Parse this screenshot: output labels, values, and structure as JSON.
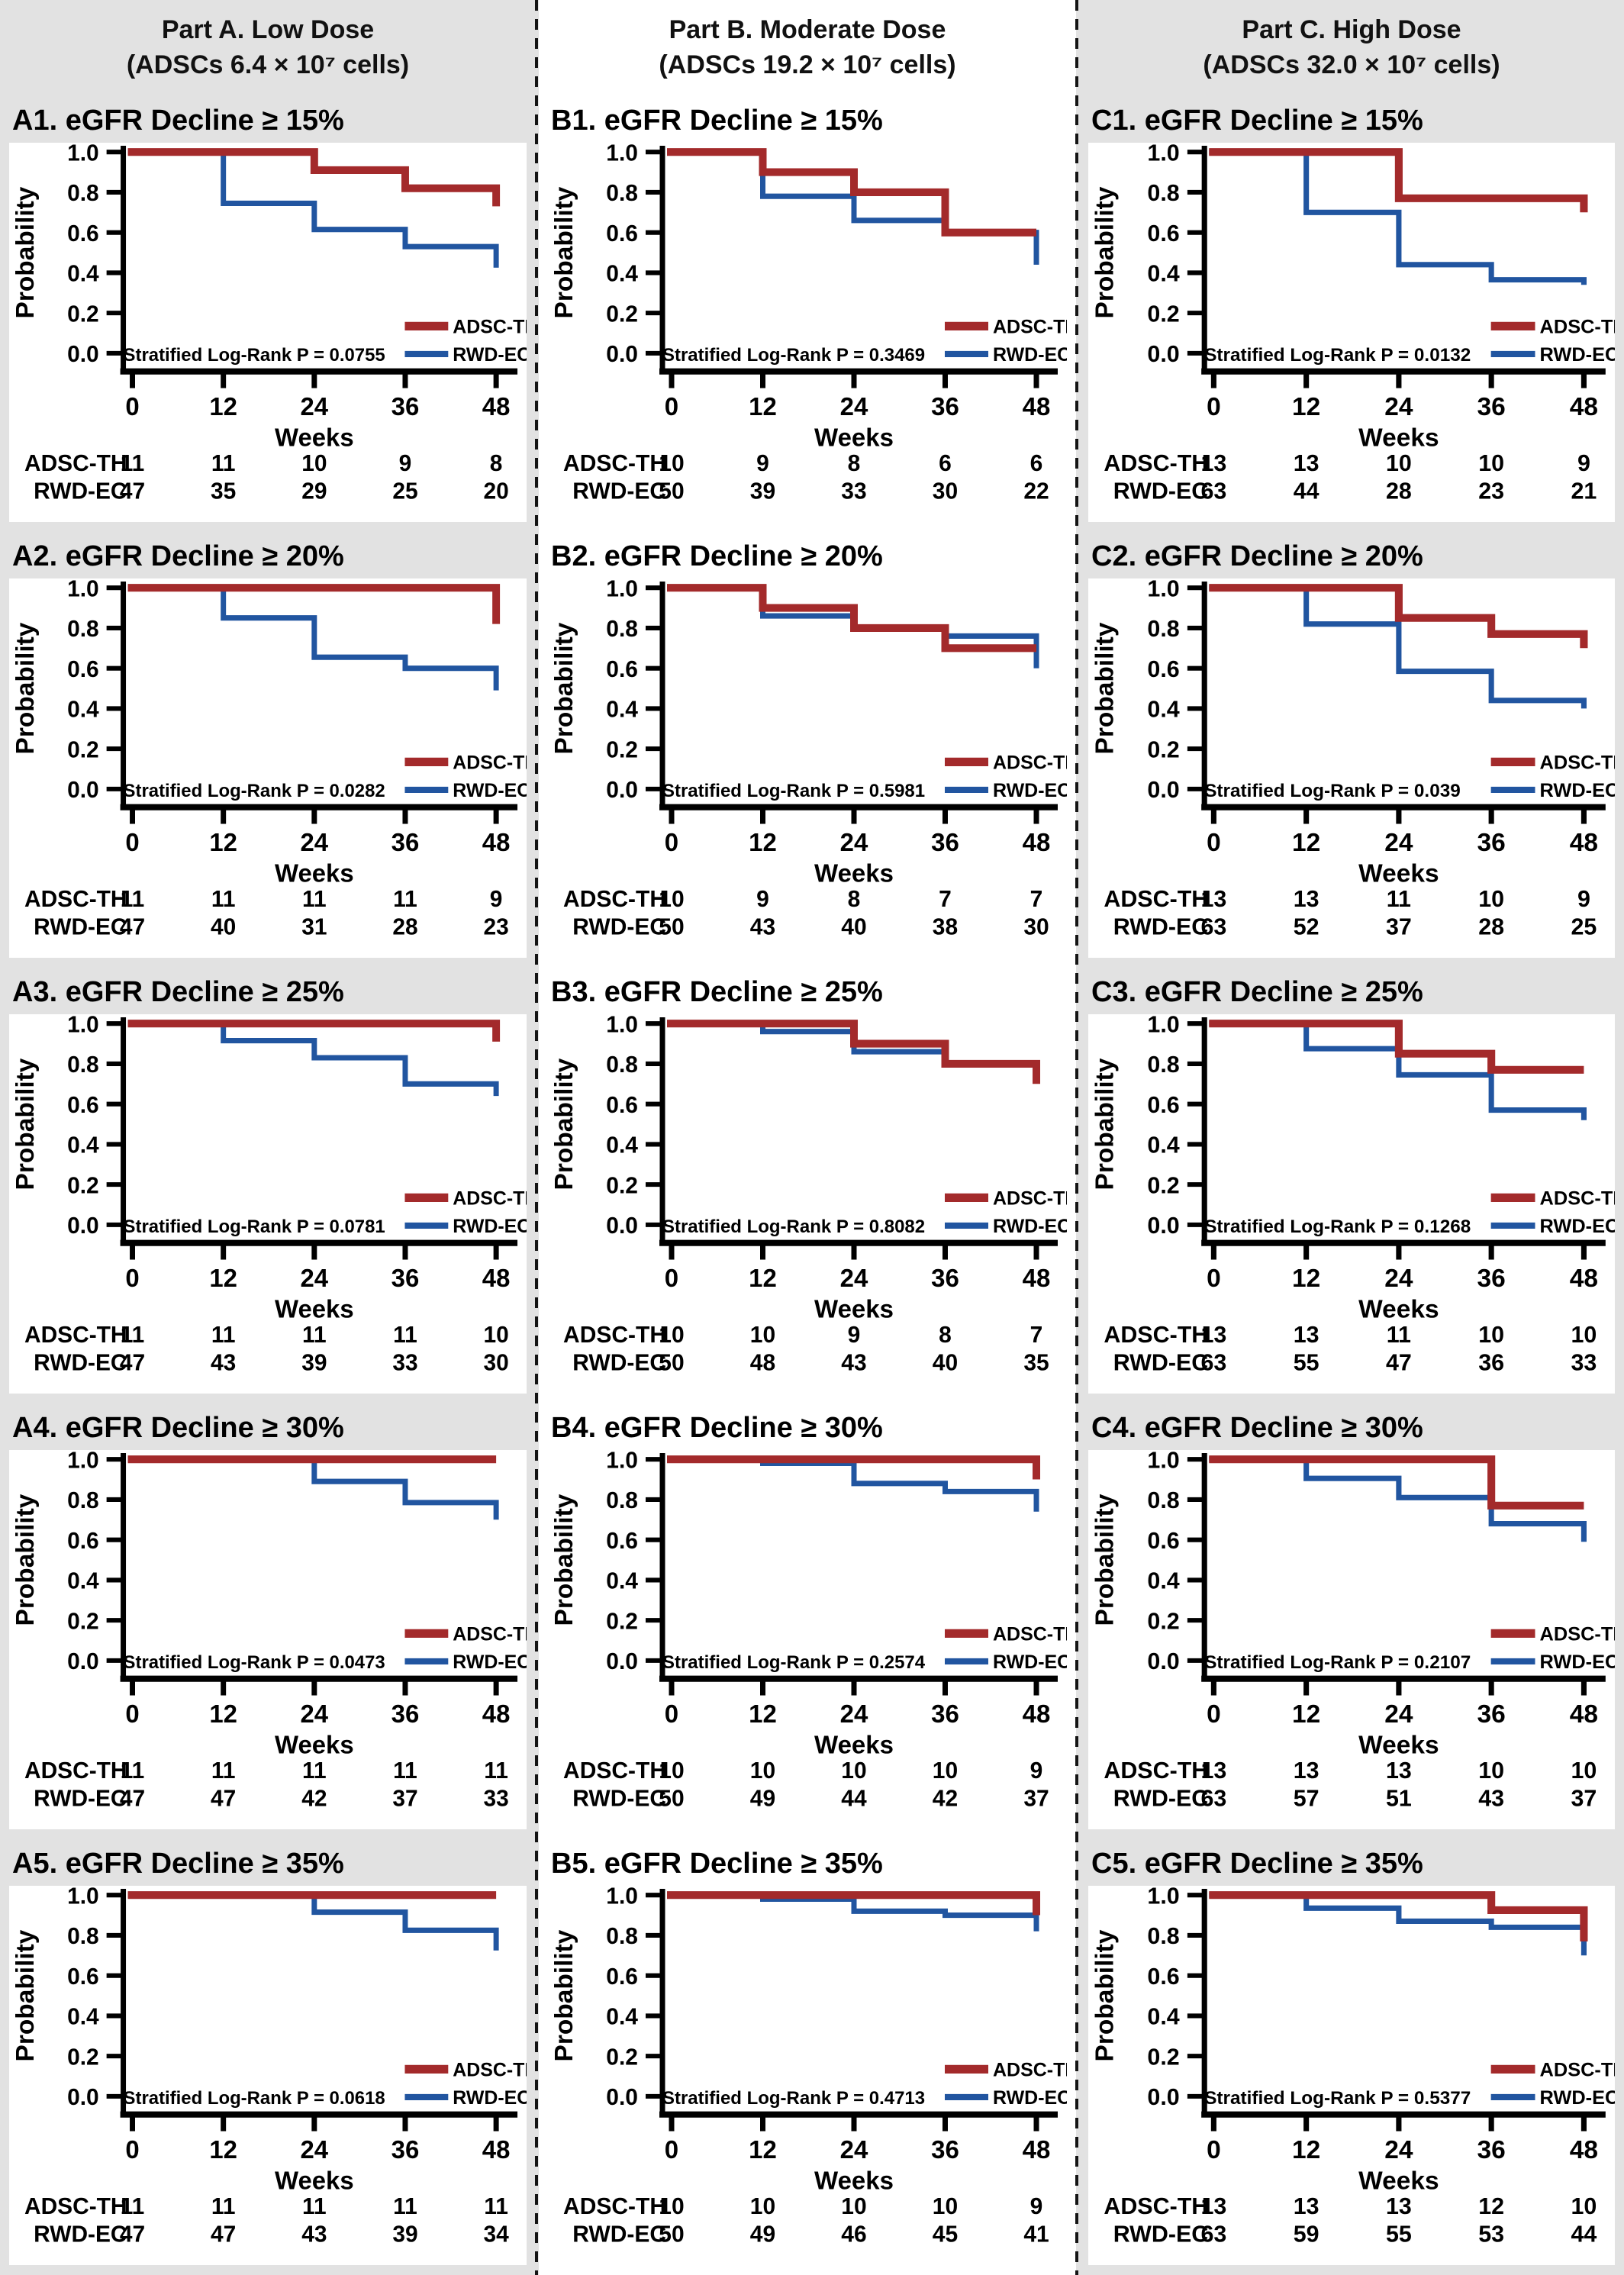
{
  "page": {
    "background": "#e2e2e2",
    "card_background": "#ffffff",
    "axis_color": "#000000",
    "separator_color": "#141414"
  },
  "colors": {
    "ADSC-TH": "#a32a2b",
    "RWD-EC": "#2155a0"
  },
  "legend": {
    "entries": [
      "ADSC-TH",
      "RWD-EC"
    ]
  },
  "axis": {
    "ylabel": "Probability",
    "xlabel": "Weeks",
    "yticks": [
      "1.0",
      "0.8",
      "0.6",
      "0.4",
      "0.2",
      "0.0"
    ],
    "xticks": [
      0,
      12,
      24,
      36,
      48
    ],
    "ylim": [
      0,
      1
    ],
    "xlim": [
      0,
      48
    ]
  },
  "columns": [
    {
      "id": "A",
      "header_line1": "Part A. Low Dose",
      "header_line2": "(ADSCs 6.4 × 10⁷ cells)"
    },
    {
      "id": "B",
      "header_line1": "Part B. Moderate Dose",
      "header_line2": "(ADSCs 19.2 × 10⁷ cells)"
    },
    {
      "id": "C",
      "header_line1": "Part C. High Dose",
      "header_line2": "(ADSCs 32.0 × 10⁷ cells)"
    }
  ],
  "risk_table_labels": [
    "ADSC-TH",
    "RWD-EC"
  ],
  "chart_data": [
    {
      "id": "A1",
      "type": "line",
      "title": "A1. eGFR Decline ≥ 15%",
      "p_label": "Stratified Log-Rank P = 0.0755",
      "series": [
        {
          "name": "ADSC-TH",
          "points": [
            [
              0,
              1.0
            ],
            [
              24,
              0.91
            ],
            [
              36,
              0.82
            ],
            [
              48,
              0.73
            ]
          ]
        },
        {
          "name": "RWD-EC",
          "points": [
            [
              0,
              1.0
            ],
            [
              12,
              0.745
            ],
            [
              24,
              0.615
            ],
            [
              36,
              0.53
            ],
            [
              48,
              0.425
            ]
          ]
        }
      ],
      "at_risk": [
        {
          "name": "ADSC-TH",
          "counts": [
            11,
            11,
            10,
            9,
            8
          ]
        },
        {
          "name": "RWD-EC",
          "counts": [
            47,
            35,
            29,
            25,
            20
          ]
        }
      ]
    },
    {
      "id": "A2",
      "type": "line",
      "title": "A2. eGFR Decline ≥ 20%",
      "p_label": "Stratified Log-Rank P = 0.0282",
      "series": [
        {
          "name": "ADSC-TH",
          "points": [
            [
              0,
              1.0
            ],
            [
              48,
              0.82
            ]
          ]
        },
        {
          "name": "RWD-EC",
          "points": [
            [
              0,
              1.0
            ],
            [
              12,
              0.85
            ],
            [
              24,
              0.655
            ],
            [
              36,
              0.6
            ],
            [
              48,
              0.49
            ]
          ]
        }
      ],
      "at_risk": [
        {
          "name": "ADSC-TH",
          "counts": [
            11,
            11,
            11,
            11,
            9
          ]
        },
        {
          "name": "RWD-EC",
          "counts": [
            47,
            40,
            31,
            28,
            23
          ]
        }
      ]
    },
    {
      "id": "A3",
      "type": "line",
      "title": "A3. eGFR Decline ≥ 25%",
      "p_label": "Stratified Log-Rank P = 0.0781",
      "series": [
        {
          "name": "ADSC-TH",
          "points": [
            [
              0,
              1.0
            ],
            [
              48,
              0.91
            ]
          ]
        },
        {
          "name": "RWD-EC",
          "points": [
            [
              0,
              1.0
            ],
            [
              12,
              0.915
            ],
            [
              24,
              0.83
            ],
            [
              36,
              0.7
            ],
            [
              48,
              0.64
            ]
          ]
        }
      ],
      "at_risk": [
        {
          "name": "ADSC-TH",
          "counts": [
            11,
            11,
            11,
            11,
            10
          ]
        },
        {
          "name": "RWD-EC",
          "counts": [
            47,
            43,
            39,
            33,
            30
          ]
        }
      ]
    },
    {
      "id": "A4",
      "type": "line",
      "title": "A4. eGFR Decline ≥ 30%",
      "p_label": "Stratified Log-Rank P = 0.0473",
      "series": [
        {
          "name": "ADSC-TH",
          "points": [
            [
              0,
              1.0
            ],
            [
              48,
              1.0
            ]
          ]
        },
        {
          "name": "RWD-EC",
          "points": [
            [
              0,
              1.0
            ],
            [
              24,
              0.89
            ],
            [
              36,
              0.785
            ],
            [
              48,
              0.7
            ]
          ]
        }
      ],
      "at_risk": [
        {
          "name": "ADSC-TH",
          "counts": [
            11,
            11,
            11,
            11,
            11
          ]
        },
        {
          "name": "RWD-EC",
          "counts": [
            47,
            47,
            42,
            37,
            33
          ]
        }
      ]
    },
    {
      "id": "A5",
      "type": "line",
      "title": "A5. eGFR Decline ≥ 35%",
      "p_label": "Stratified Log-Rank P = 0.0618",
      "series": [
        {
          "name": "ADSC-TH",
          "points": [
            [
              0,
              1.0
            ],
            [
              48,
              1.0
            ]
          ]
        },
        {
          "name": "RWD-EC",
          "points": [
            [
              0,
              1.0
            ],
            [
              24,
              0.915
            ],
            [
              36,
              0.825
            ],
            [
              48,
              0.725
            ]
          ]
        }
      ],
      "at_risk": [
        {
          "name": "ADSC-TH",
          "counts": [
            11,
            11,
            11,
            11,
            11
          ]
        },
        {
          "name": "RWD-EC",
          "counts": [
            47,
            47,
            43,
            39,
            34
          ]
        }
      ]
    },
    {
      "id": "B1",
      "type": "line",
      "title": "B1. eGFR Decline ≥ 15%",
      "p_label": "Stratified Log-Rank P = 0.3469",
      "series": [
        {
          "name": "ADSC-TH",
          "points": [
            [
              0,
              1.0
            ],
            [
              12,
              0.9
            ],
            [
              24,
              0.8
            ],
            [
              36,
              0.6
            ],
            [
              48,
              0.6
            ]
          ]
        },
        {
          "name": "RWD-EC",
          "points": [
            [
              0,
              1.0
            ],
            [
              12,
              0.78
            ],
            [
              24,
              0.66
            ],
            [
              36,
              0.6
            ],
            [
              48,
              0.44
            ]
          ]
        }
      ],
      "at_risk": [
        {
          "name": "ADSC-TH",
          "counts": [
            10,
            9,
            8,
            6,
            6
          ]
        },
        {
          "name": "RWD-EC",
          "counts": [
            50,
            39,
            33,
            30,
            22
          ]
        }
      ]
    },
    {
      "id": "B2",
      "type": "line",
      "title": "B2. eGFR Decline ≥ 20%",
      "p_label": "Stratified Log-Rank P = 0.5981",
      "series": [
        {
          "name": "ADSC-TH",
          "points": [
            [
              0,
              1.0
            ],
            [
              12,
              0.9
            ],
            [
              24,
              0.8
            ],
            [
              36,
              0.7
            ],
            [
              48,
              0.7
            ]
          ]
        },
        {
          "name": "RWD-EC",
          "points": [
            [
              0,
              1.0
            ],
            [
              12,
              0.86
            ],
            [
              24,
              0.8
            ],
            [
              36,
              0.76
            ],
            [
              48,
              0.6
            ]
          ]
        }
      ],
      "at_risk": [
        {
          "name": "ADSC-TH",
          "counts": [
            10,
            9,
            8,
            7,
            7
          ]
        },
        {
          "name": "RWD-EC",
          "counts": [
            50,
            43,
            40,
            38,
            30
          ]
        }
      ]
    },
    {
      "id": "B3",
      "type": "line",
      "title": "B3. eGFR Decline ≥ 25%",
      "p_label": "Stratified Log-Rank P = 0.8082",
      "series": [
        {
          "name": "ADSC-TH",
          "points": [
            [
              0,
              1.0
            ],
            [
              24,
              0.9
            ],
            [
              36,
              0.8
            ],
            [
              48,
              0.7
            ]
          ]
        },
        {
          "name": "RWD-EC",
          "points": [
            [
              0,
              1.0
            ],
            [
              12,
              0.96
            ],
            [
              24,
              0.86
            ],
            [
              36,
              0.8
            ],
            [
              48,
              0.71
            ]
          ]
        }
      ],
      "at_risk": [
        {
          "name": "ADSC-TH",
          "counts": [
            10,
            10,
            9,
            8,
            7
          ]
        },
        {
          "name": "RWD-EC",
          "counts": [
            50,
            48,
            43,
            40,
            35
          ]
        }
      ]
    },
    {
      "id": "B4",
      "type": "line",
      "title": "B4. eGFR Decline ≥ 30%",
      "p_label": "Stratified Log-Rank P = 0.2574",
      "series": [
        {
          "name": "ADSC-TH",
          "points": [
            [
              0,
              1.0
            ],
            [
              48,
              0.9
            ]
          ]
        },
        {
          "name": "RWD-EC",
          "points": [
            [
              0,
              1.0
            ],
            [
              12,
              0.98
            ],
            [
              24,
              0.88
            ],
            [
              36,
              0.84
            ],
            [
              48,
              0.74
            ]
          ]
        }
      ],
      "at_risk": [
        {
          "name": "ADSC-TH",
          "counts": [
            10,
            10,
            10,
            10,
            9
          ]
        },
        {
          "name": "RWD-EC",
          "counts": [
            50,
            49,
            44,
            42,
            37
          ]
        }
      ]
    },
    {
      "id": "B5",
      "type": "line",
      "title": "B5. eGFR Decline ≥ 35%",
      "p_label": "Stratified Log-Rank P = 0.4713",
      "series": [
        {
          "name": "ADSC-TH",
          "points": [
            [
              0,
              1.0
            ],
            [
              48,
              0.9
            ]
          ]
        },
        {
          "name": "RWD-EC",
          "points": [
            [
              0,
              1.0
            ],
            [
              12,
              0.98
            ],
            [
              24,
              0.92
            ],
            [
              36,
              0.9
            ],
            [
              48,
              0.82
            ]
          ]
        }
      ],
      "at_risk": [
        {
          "name": "ADSC-TH",
          "counts": [
            10,
            10,
            10,
            10,
            9
          ]
        },
        {
          "name": "RWD-EC",
          "counts": [
            50,
            49,
            46,
            45,
            41
          ]
        }
      ]
    },
    {
      "id": "C1",
      "type": "line",
      "title": "C1. eGFR Decline ≥ 15%",
      "p_label": "Stratified Log-Rank P = 0.0132",
      "series": [
        {
          "name": "ADSC-TH",
          "points": [
            [
              0,
              1.0
            ],
            [
              24,
              0.77
            ],
            [
              48,
              0.7
            ]
          ]
        },
        {
          "name": "RWD-EC",
          "points": [
            [
              0,
              1.0
            ],
            [
              12,
              0.7
            ],
            [
              24,
              0.44
            ],
            [
              36,
              0.365
            ],
            [
              48,
              0.34
            ]
          ]
        }
      ],
      "at_risk": [
        {
          "name": "ADSC-TH",
          "counts": [
            13,
            13,
            10,
            10,
            9
          ]
        },
        {
          "name": "RWD-EC",
          "counts": [
            63,
            44,
            28,
            23,
            21
          ]
        }
      ]
    },
    {
      "id": "C2",
      "type": "line",
      "title": "C2. eGFR Decline ≥ 20%",
      "p_label": "Stratified Log-Rank P = 0.039",
      "series": [
        {
          "name": "ADSC-TH",
          "points": [
            [
              0,
              1.0
            ],
            [
              24,
              0.85
            ],
            [
              36,
              0.77
            ],
            [
              48,
              0.7
            ]
          ]
        },
        {
          "name": "RWD-EC",
          "points": [
            [
              0,
              1.0
            ],
            [
              12,
              0.82
            ],
            [
              24,
              0.585
            ],
            [
              36,
              0.44
            ],
            [
              48,
              0.4
            ]
          ]
        }
      ],
      "at_risk": [
        {
          "name": "ADSC-TH",
          "counts": [
            13,
            13,
            11,
            10,
            9
          ]
        },
        {
          "name": "RWD-EC",
          "counts": [
            63,
            52,
            37,
            28,
            25
          ]
        }
      ]
    },
    {
      "id": "C3",
      "type": "line",
      "title": "C3. eGFR Decline ≥ 25%",
      "p_label": "Stratified Log-Rank P = 0.1268",
      "series": [
        {
          "name": "ADSC-TH",
          "points": [
            [
              0,
              1.0
            ],
            [
              24,
              0.85
            ],
            [
              36,
              0.77
            ],
            [
              48,
              0.77
            ]
          ]
        },
        {
          "name": "RWD-EC",
          "points": [
            [
              0,
              1.0
            ],
            [
              12,
              0.875
            ],
            [
              24,
              0.745
            ],
            [
              36,
              0.57
            ],
            [
              48,
              0.52
            ]
          ]
        }
      ],
      "at_risk": [
        {
          "name": "ADSC-TH",
          "counts": [
            13,
            13,
            11,
            10,
            10
          ]
        },
        {
          "name": "RWD-EC",
          "counts": [
            63,
            55,
            47,
            36,
            33
          ]
        }
      ]
    },
    {
      "id": "C4",
      "type": "line",
      "title": "C4. eGFR Decline ≥ 30%",
      "p_label": "Stratified Log-Rank P = 0.2107",
      "series": [
        {
          "name": "ADSC-TH",
          "points": [
            [
              0,
              1.0
            ],
            [
              36,
              0.77
            ],
            [
              48,
              0.77
            ]
          ]
        },
        {
          "name": "RWD-EC",
          "points": [
            [
              0,
              1.0
            ],
            [
              12,
              0.905
            ],
            [
              24,
              0.81
            ],
            [
              36,
              0.68
            ],
            [
              48,
              0.59
            ]
          ]
        }
      ],
      "at_risk": [
        {
          "name": "ADSC-TH",
          "counts": [
            13,
            13,
            13,
            10,
            10
          ]
        },
        {
          "name": "RWD-EC",
          "counts": [
            63,
            57,
            51,
            43,
            37
          ]
        }
      ]
    },
    {
      "id": "C5",
      "type": "line",
      "title": "C5. eGFR Decline ≥ 35%",
      "p_label": "Stratified Log-Rank P = 0.5377",
      "series": [
        {
          "name": "ADSC-TH",
          "points": [
            [
              0,
              1.0
            ],
            [
              36,
              0.925
            ],
            [
              48,
              0.77
            ]
          ]
        },
        {
          "name": "RWD-EC",
          "points": [
            [
              0,
              1.0
            ],
            [
              12,
              0.935
            ],
            [
              24,
              0.87
            ],
            [
              36,
              0.84
            ],
            [
              48,
              0.7
            ]
          ]
        }
      ],
      "at_risk": [
        {
          "name": "ADSC-TH",
          "counts": [
            13,
            13,
            13,
            12,
            10
          ]
        },
        {
          "name": "RWD-EC",
          "counts": [
            63,
            59,
            55,
            53,
            44
          ]
        }
      ]
    }
  ]
}
